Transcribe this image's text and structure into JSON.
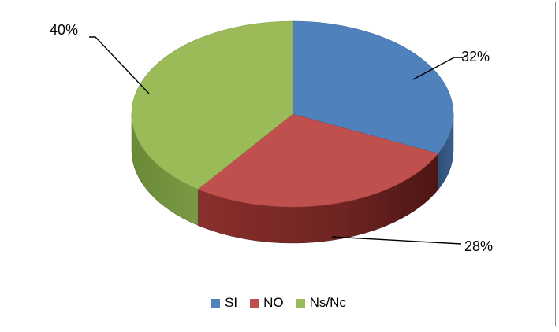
{
  "chart_data": {
    "type": "pie",
    "style": "3d",
    "title": "",
    "categories": [
      "SI",
      "NO",
      "Ns/Nc"
    ],
    "values": [
      32,
      28,
      40
    ],
    "unit": "%",
    "data_labels": [
      "32%",
      "28%",
      "40%"
    ],
    "colors": [
      "#4F81BD",
      "#C0504D",
      "#9BBB59"
    ],
    "legend": {
      "placement": "bottom",
      "entries": [
        "SI",
        "NO",
        "Ns/Nc"
      ]
    }
  }
}
